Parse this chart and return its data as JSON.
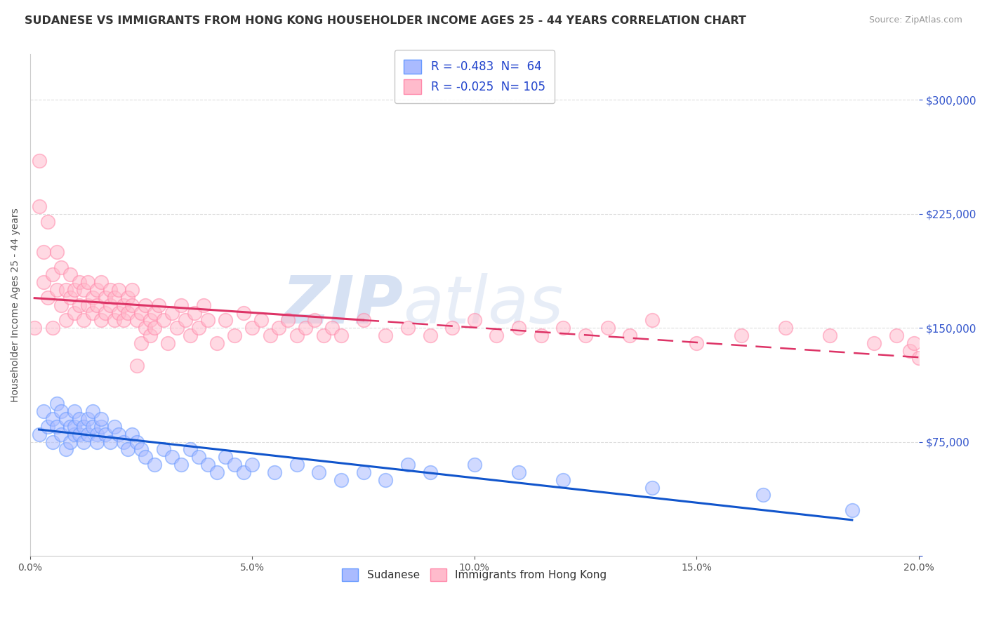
{
  "title": "SUDANESE VS IMMIGRANTS FROM HONG KONG HOUSEHOLDER INCOME AGES 25 - 44 YEARS CORRELATION CHART",
  "source": "Source: ZipAtlas.com",
  "ylabel": "Householder Income Ages 25 - 44 years",
  "xlim": [
    0.0,
    0.2
  ],
  "ylim": [
    0,
    330000
  ],
  "yticks": [
    0,
    75000,
    150000,
    225000,
    300000
  ],
  "xticks": [
    0.0,
    0.05,
    0.1,
    0.15,
    0.2
  ],
  "series": [
    {
      "name": "Sudanese",
      "R": -0.483,
      "N": 64,
      "line_color": "#1155cc",
      "marker_face": "#aabbff",
      "marker_edge": "#6699ff"
    },
    {
      "name": "Immigrants from Hong Kong",
      "R": -0.025,
      "N": 105,
      "line_color": "#dd3366",
      "marker_face": "#ffbbcc",
      "marker_edge": "#ff88aa"
    }
  ],
  "sudanese_x": [
    0.002,
    0.003,
    0.004,
    0.005,
    0.005,
    0.006,
    0.006,
    0.007,
    0.007,
    0.008,
    0.008,
    0.009,
    0.009,
    0.01,
    0.01,
    0.01,
    0.011,
    0.011,
    0.012,
    0.012,
    0.013,
    0.013,
    0.014,
    0.014,
    0.015,
    0.015,
    0.016,
    0.016,
    0.017,
    0.018,
    0.019,
    0.02,
    0.021,
    0.022,
    0.023,
    0.024,
    0.025,
    0.026,
    0.028,
    0.03,
    0.032,
    0.034,
    0.036,
    0.038,
    0.04,
    0.042,
    0.044,
    0.046,
    0.048,
    0.05,
    0.055,
    0.06,
    0.065,
    0.07,
    0.075,
    0.08,
    0.085,
    0.09,
    0.1,
    0.11,
    0.12,
    0.14,
    0.165,
    0.185
  ],
  "sudanese_y": [
    80000,
    95000,
    85000,
    75000,
    90000,
    100000,
    85000,
    95000,
    80000,
    70000,
    90000,
    85000,
    75000,
    80000,
    95000,
    85000,
    90000,
    80000,
    75000,
    85000,
    90000,
    80000,
    85000,
    95000,
    80000,
    75000,
    85000,
    90000,
    80000,
    75000,
    85000,
    80000,
    75000,
    70000,
    80000,
    75000,
    70000,
    65000,
    60000,
    70000,
    65000,
    60000,
    70000,
    65000,
    60000,
    55000,
    65000,
    60000,
    55000,
    60000,
    55000,
    60000,
    55000,
    50000,
    55000,
    50000,
    60000,
    55000,
    60000,
    55000,
    50000,
    45000,
    40000,
    30000
  ],
  "hk_x": [
    0.001,
    0.002,
    0.002,
    0.003,
    0.003,
    0.004,
    0.004,
    0.005,
    0.005,
    0.006,
    0.006,
    0.007,
    0.007,
    0.008,
    0.008,
    0.009,
    0.009,
    0.01,
    0.01,
    0.011,
    0.011,
    0.012,
    0.012,
    0.013,
    0.013,
    0.014,
    0.014,
    0.015,
    0.015,
    0.016,
    0.016,
    0.017,
    0.017,
    0.018,
    0.018,
    0.019,
    0.019,
    0.02,
    0.02,
    0.021,
    0.021,
    0.022,
    0.022,
    0.023,
    0.023,
    0.024,
    0.024,
    0.025,
    0.025,
    0.026,
    0.026,
    0.027,
    0.027,
    0.028,
    0.028,
    0.029,
    0.03,
    0.031,
    0.032,
    0.033,
    0.034,
    0.035,
    0.036,
    0.037,
    0.038,
    0.039,
    0.04,
    0.042,
    0.044,
    0.046,
    0.048,
    0.05,
    0.052,
    0.054,
    0.056,
    0.058,
    0.06,
    0.062,
    0.064,
    0.066,
    0.068,
    0.07,
    0.075,
    0.08,
    0.085,
    0.09,
    0.095,
    0.1,
    0.105,
    0.11,
    0.115,
    0.12,
    0.125,
    0.13,
    0.135,
    0.14,
    0.15,
    0.16,
    0.17,
    0.18,
    0.19,
    0.195,
    0.198,
    0.199,
    0.2
  ],
  "hk_y": [
    150000,
    260000,
    230000,
    180000,
    200000,
    170000,
    220000,
    150000,
    185000,
    200000,
    175000,
    165000,
    190000,
    155000,
    175000,
    170000,
    185000,
    160000,
    175000,
    165000,
    180000,
    155000,
    175000,
    165000,
    180000,
    170000,
    160000,
    175000,
    165000,
    180000,
    155000,
    170000,
    160000,
    175000,
    165000,
    155000,
    170000,
    160000,
    175000,
    165000,
    155000,
    170000,
    160000,
    175000,
    165000,
    155000,
    125000,
    140000,
    160000,
    150000,
    165000,
    155000,
    145000,
    160000,
    150000,
    165000,
    155000,
    140000,
    160000,
    150000,
    165000,
    155000,
    145000,
    160000,
    150000,
    165000,
    155000,
    140000,
    155000,
    145000,
    160000,
    150000,
    155000,
    145000,
    150000,
    155000,
    145000,
    150000,
    155000,
    145000,
    150000,
    145000,
    155000,
    145000,
    150000,
    145000,
    150000,
    155000,
    145000,
    150000,
    145000,
    150000,
    145000,
    150000,
    145000,
    155000,
    140000,
    145000,
    150000,
    145000,
    140000,
    145000,
    135000,
    140000,
    130000
  ],
  "watermark_zip": "ZIP",
  "watermark_atlas": "atlas",
  "background_color": "#ffffff",
  "grid_color": "#dddddd",
  "title_color": "#333333",
  "axis_label_color": "#555555",
  "tick_color_y_right": "#3355cc",
  "hk_trend_solid_end": 0.075
}
